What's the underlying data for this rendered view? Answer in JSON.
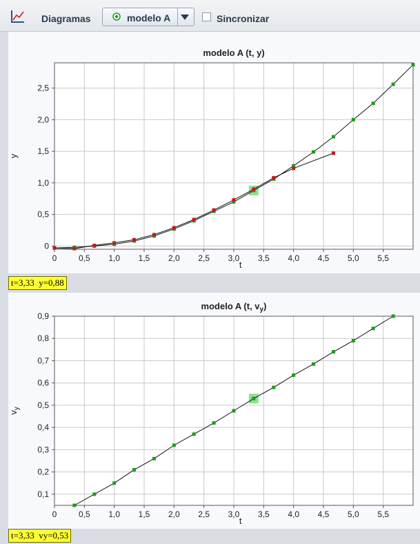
{
  "toolbar": {
    "diagram_icon": "chart-axes-icon",
    "diagrams_label": "Diagramas",
    "model_icon": "model-dot-icon",
    "model_select_value": "modelo A",
    "sync_label": "Sincronizar",
    "sync_checked": false
  },
  "colors": {
    "model_points": "#1e9a1e",
    "data_points": "#c8141e",
    "highlight": "#7bd97b"
  },
  "chart_data": [
    {
      "type": "scatter",
      "title": "modelo A (t, y)",
      "xlabel": "t",
      "ylabel": "y",
      "xlim": [
        0,
        6
      ],
      "ylim": [
        -0.05,
        2.9
      ],
      "x_ticks": [
        "0",
        "0,5",
        "1,0",
        "1,5",
        "2,0",
        "2,5",
        "3,0",
        "3,5",
        "4,0",
        "4,5",
        "5,0",
        "5,5"
      ],
      "y_ticks": [
        "0",
        "0,5",
        "1,0",
        "1,5",
        "2,0",
        "2,5"
      ],
      "grid": true,
      "series": [
        {
          "role": "model",
          "x": [
            0,
            0.333,
            0.667,
            1.0,
            1.333,
            1.667,
            2.0,
            2.333,
            2.667,
            3.0,
            3.333,
            3.667,
            4.0,
            4.333,
            4.667,
            5.0,
            5.333,
            5.667,
            6.0
          ],
          "y": [
            -0.03,
            -0.02,
            0.0,
            0.03,
            0.08,
            0.16,
            0.27,
            0.4,
            0.55,
            0.7,
            0.88,
            1.06,
            1.27,
            1.49,
            1.73,
            2.0,
            2.26,
            2.56,
            2.87
          ]
        },
        {
          "role": "data",
          "x": [
            0,
            0.333,
            0.667,
            1.0,
            1.333,
            1.667,
            2.0,
            2.333,
            2.667,
            3.0,
            3.333,
            3.667,
            4.0,
            4.667
          ],
          "y": [
            -0.03,
            -0.04,
            0.01,
            0.05,
            0.1,
            0.18,
            0.29,
            0.42,
            0.57,
            0.73,
            0.9,
            1.08,
            1.23,
            1.47
          ]
        }
      ],
      "highlight": {
        "x": 3.333,
        "y": 0.88
      },
      "readout": "t=3,33  y=0,88"
    },
    {
      "type": "scatter",
      "title": "modelo A (t, v",
      "title_subscript": "y",
      "title_suffix": ")",
      "xlabel": "t",
      "ylabel": "v",
      "ylabel_subscript": "y",
      "xlim": [
        0,
        6
      ],
      "ylim": [
        0.05,
        0.9
      ],
      "x_ticks": [
        "0",
        "0,5",
        "1,0",
        "1,5",
        "2,0",
        "2,5",
        "3,0",
        "3,5",
        "4,0",
        "4,5",
        "5,0",
        "5,5"
      ],
      "y_ticks": [
        "0,1",
        "0,2",
        "0,3",
        "0,4",
        "0,5",
        "0,6",
        "0,7",
        "0,8",
        "0,9"
      ],
      "grid": true,
      "series": [
        {
          "role": "model",
          "x": [
            0.333,
            0.667,
            1.0,
            1.333,
            1.667,
            2.0,
            2.333,
            2.667,
            3.0,
            3.333,
            3.667,
            4.0,
            4.333,
            4.667,
            5.0,
            5.333,
            5.667
          ],
          "y": [
            0.05,
            0.1,
            0.15,
            0.21,
            0.26,
            0.32,
            0.37,
            0.42,
            0.475,
            0.53,
            0.58,
            0.635,
            0.685,
            0.74,
            0.79,
            0.845,
            0.9
          ]
        }
      ],
      "highlight": {
        "x": 3.333,
        "y": 0.53
      },
      "readout": "t=3,33  vy=0,53"
    }
  ]
}
